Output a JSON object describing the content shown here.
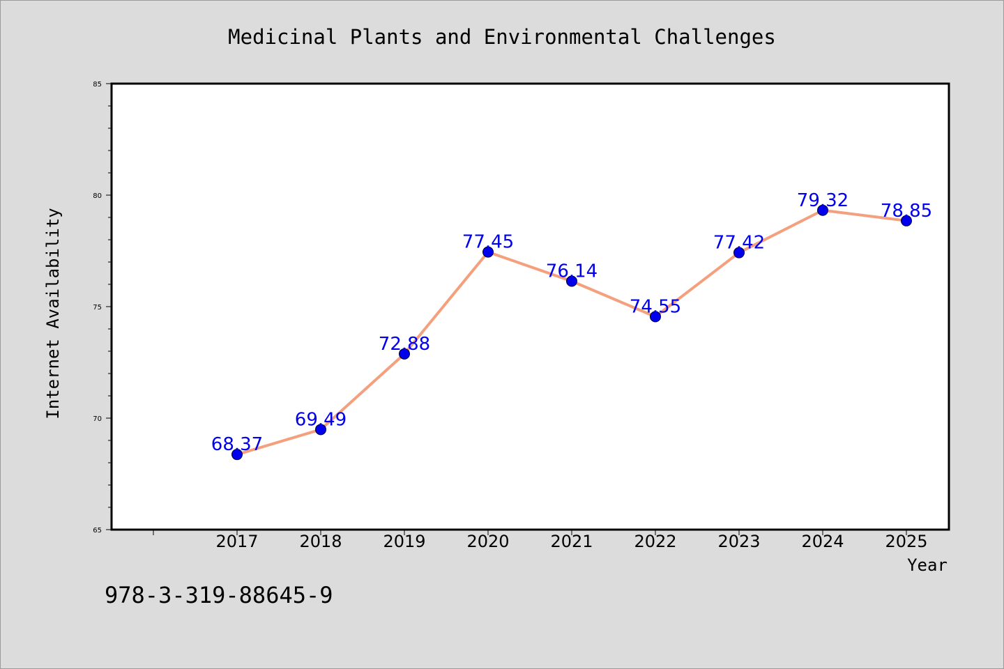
{
  "chart_data": {
    "type": "line",
    "title": "Medicinal Plants and Environmental Challenges",
    "xlabel": "Year",
    "ylabel": "Internet Availability",
    "categories": [
      "2017",
      "2018",
      "2019",
      "2020",
      "2021",
      "2022",
      "2023",
      "2024",
      "2025"
    ],
    "values": [
      68.37,
      69.49,
      72.88,
      77.45,
      76.14,
      74.55,
      77.42,
      79.32,
      78.85
    ],
    "data_labels": [
      "68.37",
      "69.49",
      "72.88",
      "77.45",
      "76.14",
      "74.55",
      "77.42",
      "79.32",
      "78.85"
    ],
    "ylim": [
      65,
      85
    ],
    "yticks": [
      65,
      70,
      75,
      80,
      85
    ],
    "grid": false,
    "line_color": "#f4a07e",
    "marker_color": "#0000ee",
    "label_color": "#0000ee",
    "background_color": "#dcdcdc",
    "plot_background": "#ffffff"
  },
  "footer": {
    "isbn": "978-3-319-88645-9"
  }
}
